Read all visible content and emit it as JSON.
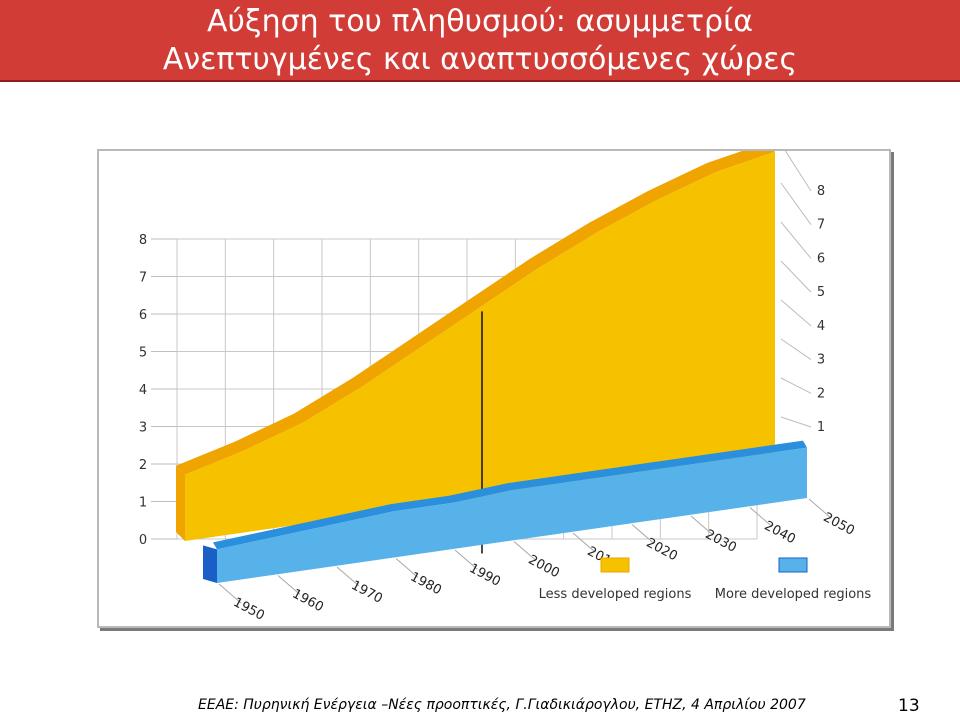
{
  "slide": {
    "title_line1": "Αύξηση του πληθυσμού: ασυμμετρία",
    "title_line2": "Ανεπτυγμένες και αναπτυσσόμενες χώρες",
    "footer": "ΕΕΑΕ: Πυρηνική Ενέργεια –Νέες προοπτικές, Γ.Γιαδικιάρογλου, ΕΤΗΖ, 4 Απριλίου 2007",
    "page_number": "13"
  },
  "colors": {
    "title_bg": "#d23c37",
    "less_developed": "#f6c200",
    "less_developed_top": "#efa400",
    "more_developed": "#58b2ea",
    "more_developed_top": "#2a8fdc",
    "more_developed_side": "#1a5fc8"
  },
  "chart_data": {
    "type": "area",
    "x": [
      1950,
      1960,
      1970,
      1980,
      1990,
      2000,
      2010,
      2020,
      2030,
      2040,
      2050
    ],
    "x_tick_labels": [
      "1950",
      "1960",
      "1970",
      "1980",
      "1990",
      "2000",
      "2010",
      "2020",
      "2030",
      "2040",
      "2050"
    ],
    "left_axis_ticks": [
      "0",
      "1",
      "2",
      "3",
      "4",
      "5",
      "6",
      "7",
      "8"
    ],
    "right_axis_ticks": [
      "1",
      "2",
      "3",
      "4",
      "5",
      "6",
      "7",
      "8"
    ],
    "ylim": [
      0,
      8
    ],
    "stacked": true,
    "three_d": true,
    "grid": true,
    "reference_line_x": 2000,
    "series": [
      {
        "name": "Less developed regions",
        "values": [
          1.7,
          2.1,
          2.6,
          3.3,
          4.1,
          4.9,
          5.7,
          6.4,
          7.0,
          7.5,
          7.8
        ]
      },
      {
        "name": "More developed regions",
        "values": [
          0.8,
          0.9,
          1.0,
          1.1,
          1.1,
          1.2,
          1.2,
          1.2,
          1.2,
          1.2,
          1.2
        ]
      }
    ],
    "legend_placement": "bottom-right"
  }
}
